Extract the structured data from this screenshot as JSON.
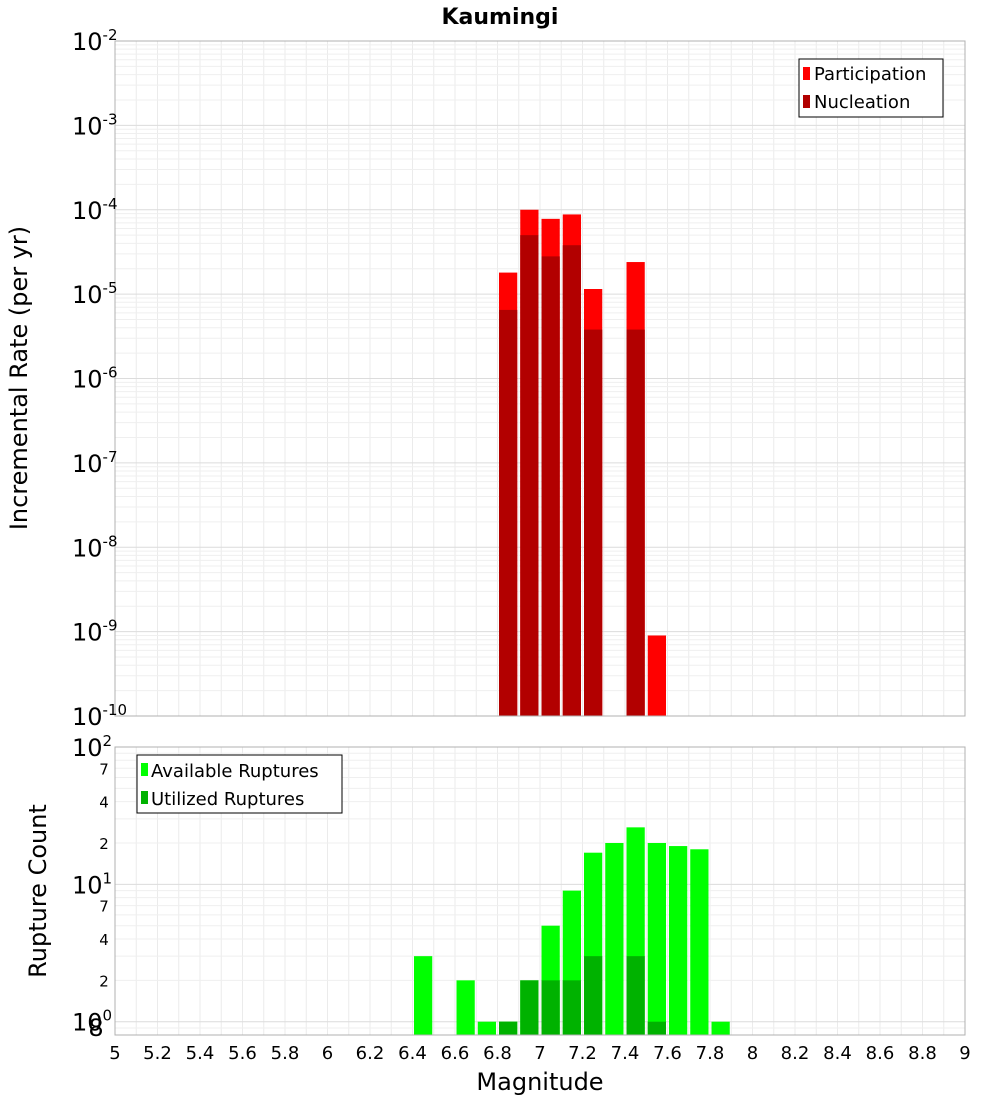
{
  "chart_data": [
    {
      "type": "bar",
      "title": "Kaumingi",
      "ylabel": "Incremental Rate (per yr)",
      "yscale": "log",
      "ylim": [
        1e-10,
        0.01
      ],
      "xlim": [
        5,
        9
      ],
      "grid": true,
      "legend_position": "top-right",
      "y_ticks": [
        {
          "base": "10",
          "exp": "-10"
        },
        {
          "base": "10",
          "exp": "-9"
        },
        {
          "base": "10",
          "exp": "-8"
        },
        {
          "base": "10",
          "exp": "-7"
        },
        {
          "base": "10",
          "exp": "-6"
        },
        {
          "base": "10",
          "exp": "-5"
        },
        {
          "base": "10",
          "exp": "-4"
        },
        {
          "base": "10",
          "exp": "-3"
        },
        {
          "base": "10",
          "exp": "-2"
        }
      ],
      "series": [
        {
          "name": "Participation",
          "color": "#ff0000",
          "x": [
            6.85,
            6.95,
            7.05,
            7.15,
            7.25,
            7.45,
            7.55
          ],
          "values": [
            1.8e-05,
            0.0001,
            7.8e-05,
            8.8e-05,
            1.15e-05,
            2.4e-05,
            9e-10
          ]
        },
        {
          "name": "Nucleation",
          "color": "#b20000",
          "x": [
            6.85,
            6.95,
            7.05,
            7.15,
            7.25,
            7.45
          ],
          "values": [
            6.5e-06,
            5e-05,
            2.8e-05,
            3.8e-05,
            3.8e-06,
            3.8e-06
          ]
        }
      ]
    },
    {
      "type": "bar",
      "xlabel": "Magnitude",
      "ylabel": "Rupture Count",
      "yscale": "log",
      "ylim": [
        0.8,
        100
      ],
      "xlim": [
        5,
        9
      ],
      "grid": true,
      "legend_position": "top-left",
      "x_ticks": [
        "5",
        "5.2",
        "5.4",
        "5.6",
        "5.8",
        "6",
        "6.2",
        "6.4",
        "6.6",
        "6.8",
        "7",
        "7.2",
        "7.4",
        "7.6",
        "7.8",
        "8",
        "8.2",
        "8.4",
        "8.6",
        "8.8",
        "9"
      ],
      "y_major_ticks": [
        {
          "base": "10",
          "exp": "0"
        },
        {
          "base": "10",
          "exp": "1"
        },
        {
          "base": "10",
          "exp": "2"
        }
      ],
      "y_minor_ticks": [
        "8",
        "2",
        "4",
        "7",
        "2",
        "4",
        "7"
      ],
      "series": [
        {
          "name": "Available Ruptures",
          "color": "#00ff00",
          "x": [
            6.45,
            6.65,
            6.75,
            6.85,
            6.95,
            7.05,
            7.15,
            7.25,
            7.35,
            7.45,
            7.55,
            7.65,
            7.75,
            7.85
          ],
          "values": [
            3,
            2,
            1,
            1,
            2,
            5,
            9,
            17,
            20,
            26,
            20,
            19,
            18,
            1
          ]
        },
        {
          "name": "Utilized Ruptures",
          "color": "#00b200",
          "x": [
            6.85,
            6.95,
            7.05,
            7.15,
            7.25,
            7.45,
            7.55
          ],
          "values": [
            1,
            2,
            2,
            2,
            3,
            3,
            1
          ]
        }
      ]
    }
  ]
}
